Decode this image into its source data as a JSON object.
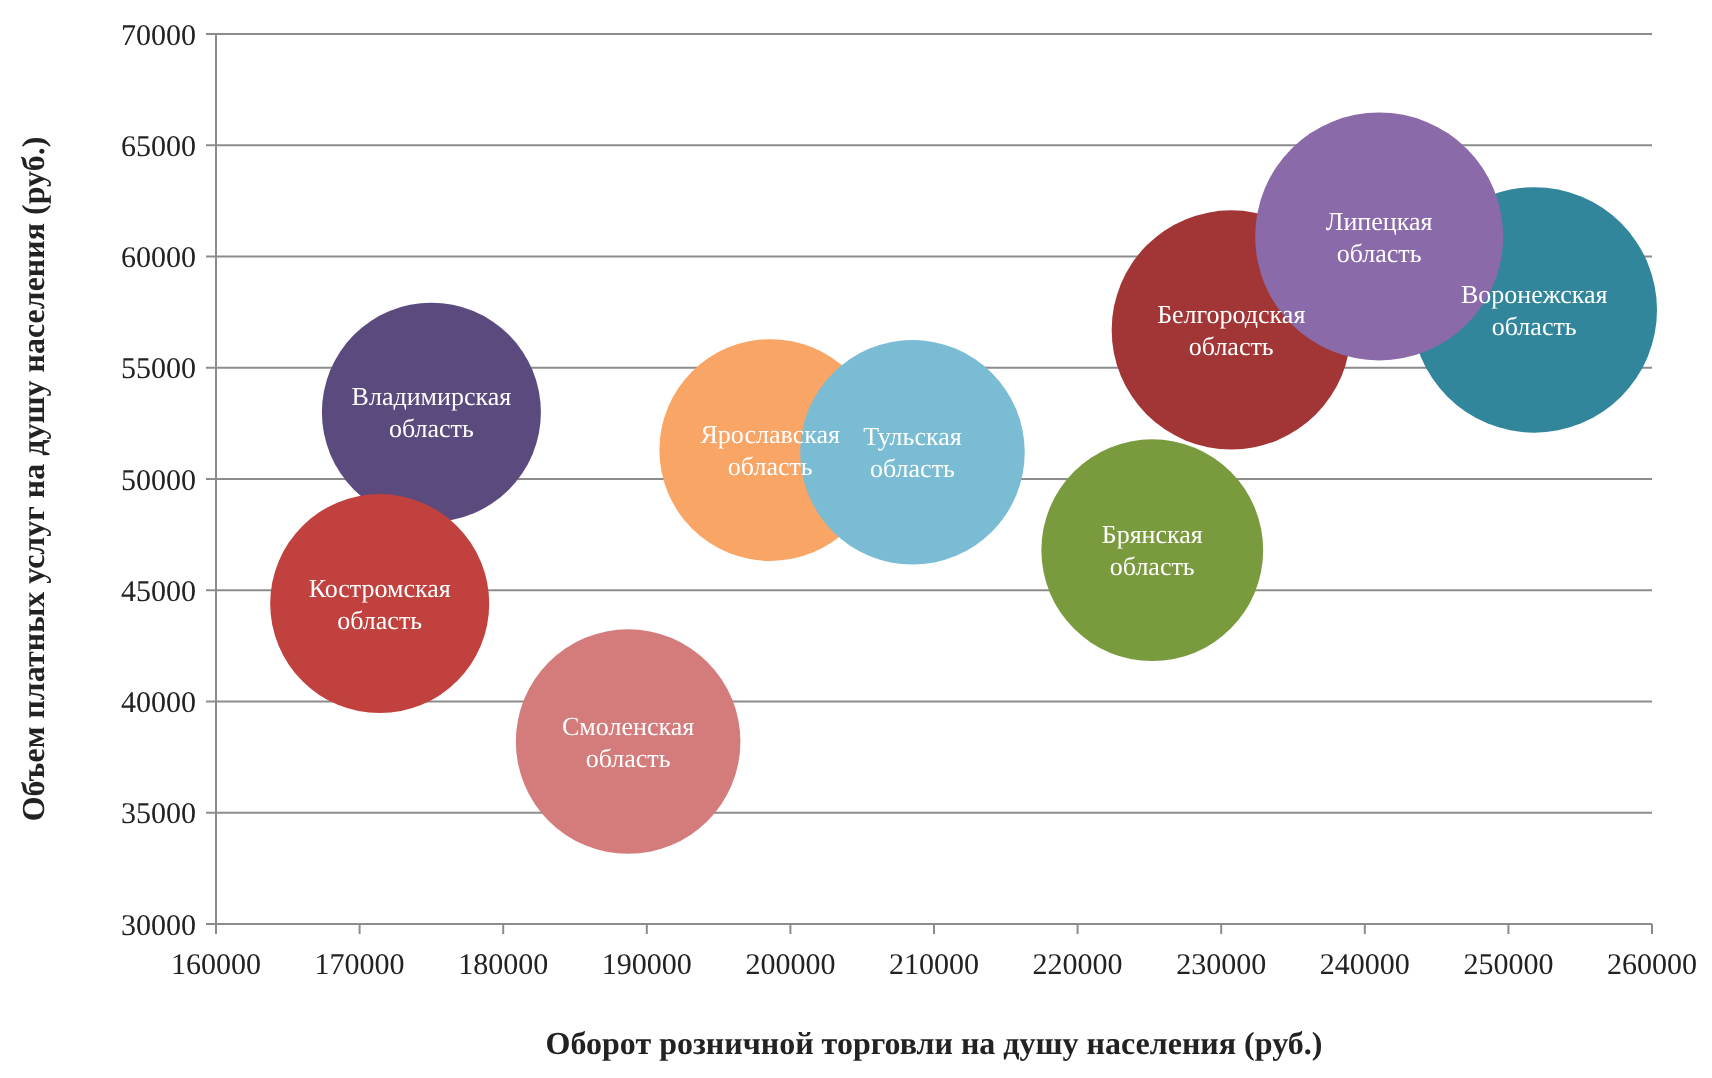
{
  "chart_data": {
    "type": "bubble",
    "xlabel": "Оборот розничной торговли на душу населения (руб.)",
    "ylabel": "Объем платных услуг на душу населения (руб.)",
    "xlim": [
      160000,
      260000
    ],
    "xticks": [
      160000,
      170000,
      180000,
      190000,
      200000,
      210000,
      220000,
      230000,
      240000,
      250000,
      260000
    ],
    "ylim": [
      30000,
      70000
    ],
    "yticks": [
      30000,
      35000,
      40000,
      45000,
      50000,
      55000,
      60000,
      65000,
      70000
    ],
    "grid": "y",
    "series": [
      {
        "name": "Владимирская область",
        "color": "#5b4a7e",
        "x": [
          175000
        ],
        "values": [
          53000
        ],
        "sizes": [
          0.78
        ]
      },
      {
        "name": "Костромская область",
        "color": "#c0413e",
        "x": [
          171400
        ],
        "values": [
          44400
        ],
        "sizes": [
          0.78
        ]
      },
      {
        "name": "Смоленская область",
        "color": "#d47b7b",
        "x": [
          188700
        ],
        "values": [
          38200
        ],
        "sizes": [
          0.82
        ]
      },
      {
        "name": "Ярославская область",
        "color": "#f9a566",
        "x": [
          198600
        ],
        "values": [
          51300
        ],
        "sizes": [
          0.8
        ]
      },
      {
        "name": "Тульская область",
        "color": "#79bcd4",
        "x": [
          208500
        ],
        "values": [
          51200
        ],
        "sizes": [
          0.82
        ]
      },
      {
        "name": "Брянская область",
        "color": "#7a9a3e",
        "x": [
          225200
        ],
        "values": [
          46800
        ],
        "sizes": [
          0.8
        ]
      },
      {
        "name": "Белгородская область",
        "color": "#a23535",
        "x": [
          230700
        ],
        "values": [
          56700
        ],
        "sizes": [
          0.93
        ]
      },
      {
        "name": "Воронежская область",
        "color": "#31869b",
        "x": [
          251800
        ],
        "values": [
          57600
        ],
        "sizes": [
          0.98
        ]
      },
      {
        "name": "Липецкая область",
        "color": "#8a6aa8",
        "x": [
          241000
        ],
        "values": [
          60900
        ],
        "sizes": [
          1
        ]
      }
    ]
  }
}
